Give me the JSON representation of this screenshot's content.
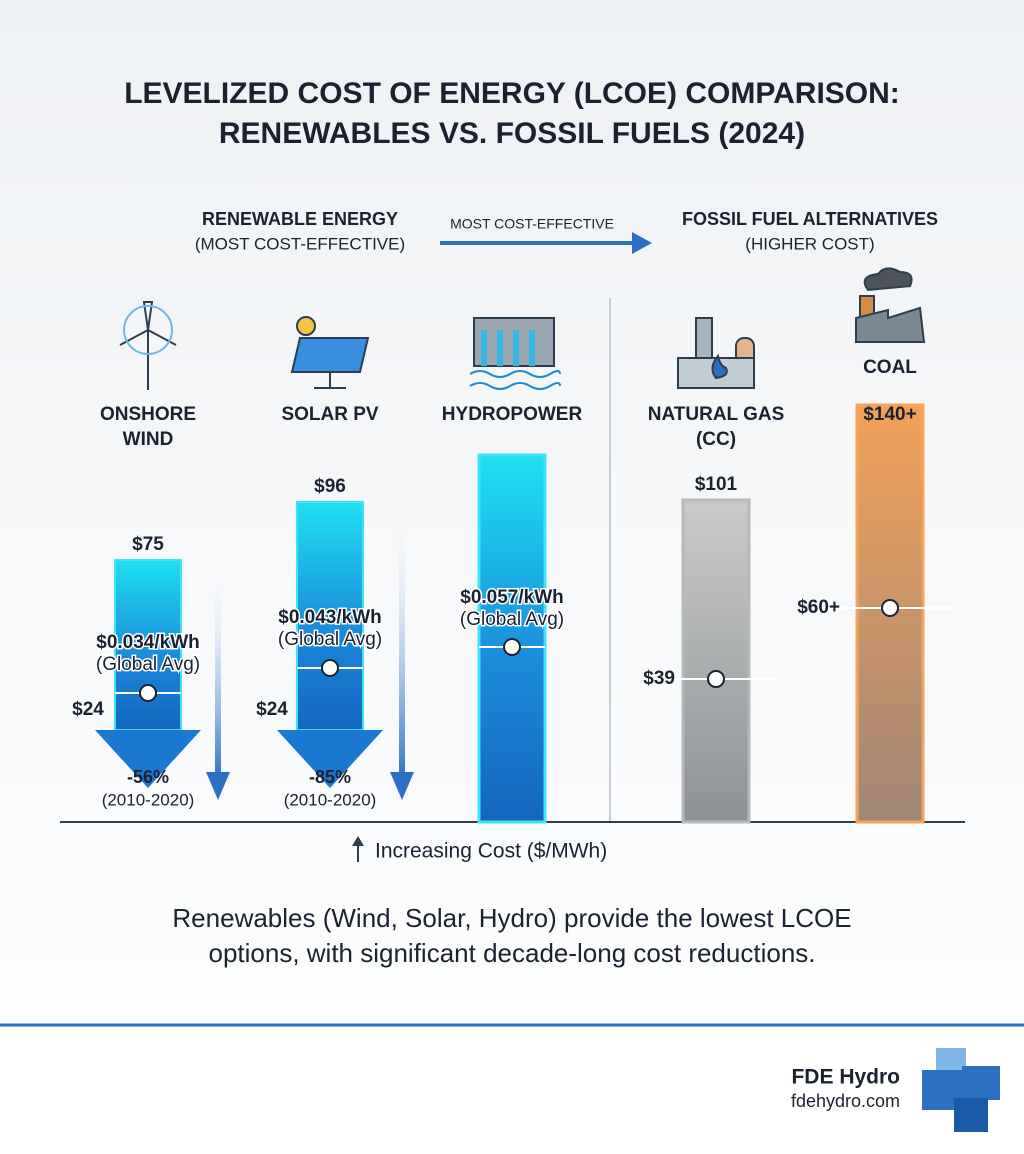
{
  "title": [
    "LEVELIZED COST OF ENERGY (LCOE) COMPARISON:",
    "RENEWABLES VS. FOSSIL FUELS (2024)"
  ],
  "renewable_header": {
    "title": "RENEWABLE ENERGY",
    "subtitle": "(MOST COST-EFFECTIVE)"
  },
  "arrow_label": "MOST COST-EFFECTIVE",
  "fossil_header": {
    "title": "FOSSIL FUEL ALTERNATIVES",
    "subtitle": "(HIGHER COST)"
  },
  "columns": [
    {
      "label": [
        "ONSHORE",
        "WIND"
      ],
      "top": "$75",
      "average": [
        "$0.034/kWh",
        "(Global Avg)"
      ],
      "low": "$24",
      "change": "-56%",
      "period": "(2010-2020)"
    },
    {
      "label": [
        "SOLAR PV"
      ],
      "top": "$96",
      "average": [
        "$0.043/kWh",
        "(Global Avg)"
      ],
      "low": "$24",
      "change": "-85%",
      "period": "(2010-2020)"
    },
    {
      "label": [
        "HYDROPOWER"
      ],
      "average": [
        "$0.057/kWh",
        "(Global Avg)"
      ]
    },
    {
      "label": [
        "NATURAL GAS",
        "(CC)"
      ],
      "top": "$101",
      "low": "$39"
    },
    {
      "label": [
        "COAL"
      ],
      "top": "$140+",
      "low": "$60+"
    }
  ],
  "axis_label": "Increasing Cost ($/MWh)",
  "summary": [
    "Renewables (Wind, Solar, Hydro) provide the lowest LCOE",
    "options, with significant decade-long cost reductions."
  ],
  "footer": {
    "brand": "FDE Hydro",
    "url": "fdehydro.com"
  }
}
